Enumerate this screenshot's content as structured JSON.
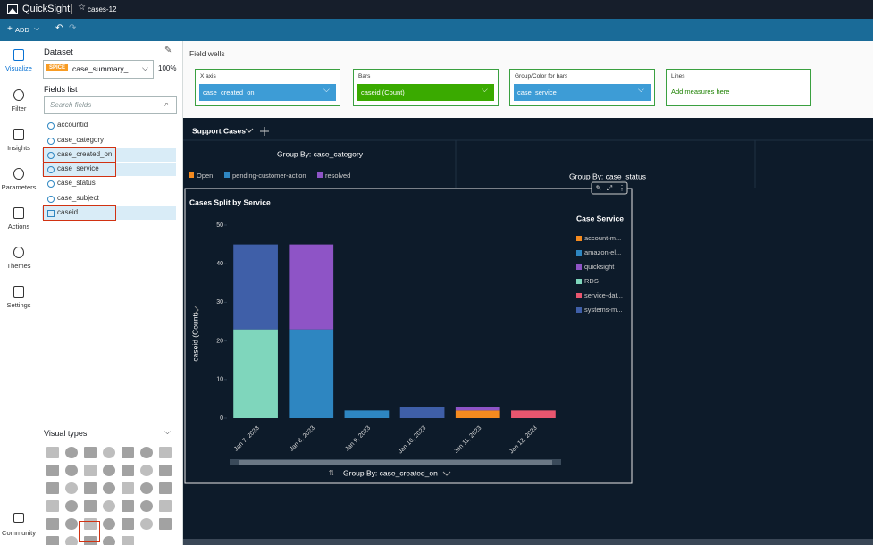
{
  "header": {
    "app": "QuickSight",
    "analysis": "cases-12",
    "add": "ADD"
  },
  "sidebar": {
    "items": [
      "Visualize",
      "Filter",
      "Insights",
      "Parameters",
      "Actions",
      "Themes",
      "Settings"
    ],
    "community": "Community"
  },
  "dataset": {
    "title": "Dataset",
    "badge": "SPICE",
    "name": "case_summary_...",
    "percent": "100%"
  },
  "fields": {
    "title": "Fields list",
    "search": "Search fields",
    "items": [
      "accountid",
      "case_category",
      "case_created_on",
      "case_service",
      "case_status",
      "case_subject",
      "caseid"
    ]
  },
  "visual_types": {
    "title": "Visual types"
  },
  "field_wells": {
    "title": "Field wells",
    "wells": [
      {
        "label": "X axis",
        "value": "case_created_on"
      },
      {
        "label": "Bars",
        "value": "caseid (Count)"
      },
      {
        "label": "Group/Color for bars",
        "value": "case_service"
      },
      {
        "label": "Lines",
        "value": "Add measures here"
      }
    ]
  },
  "sheet_tab": "Support Cases",
  "background": {
    "title1": "Group By: case_category",
    "title2": "Group By: case_status",
    "legend": [
      {
        "name": "Open",
        "color": "#f58b1f"
      },
      {
        "name": "pending-customer-action",
        "color": "#2e86c1"
      },
      {
        "name": "resolved",
        "color": "#8e54c6"
      }
    ]
  },
  "chart_data": {
    "type": "bar",
    "stacked": true,
    "title": "Cases Split by Service",
    "y_label": "caseid (Count)",
    "x_label": "Group By: case_created_on",
    "legend_title": "Case Service",
    "legend_position": "right",
    "categories": [
      "Jan 7, 2023",
      "Jan 8, 2023",
      "Jan 9, 2023",
      "Jan 10, 2023",
      "Jan 11, 2023",
      "Jan 12, 2023"
    ],
    "series": [
      {
        "name": "account-m...",
        "color": "#f58b1f",
        "values": [
          null,
          null,
          null,
          null,
          2,
          null
        ]
      },
      {
        "name": "amazon-el...",
        "color": "#2e86c1",
        "values": [
          null,
          23,
          2,
          null,
          null,
          null
        ]
      },
      {
        "name": "quicksight",
        "color": "#8e54c6",
        "values": [
          null,
          22,
          null,
          null,
          1,
          null
        ]
      },
      {
        "name": "RDS",
        "color": "#7fd6bc",
        "values": [
          23,
          null,
          null,
          null,
          null,
          null
        ]
      },
      {
        "name": "service-dat...",
        "color": "#e8566f",
        "values": [
          null,
          null,
          null,
          null,
          null,
          2
        ]
      },
      {
        "name": "systems-m...",
        "color": "#3f5fa8",
        "values": [
          22,
          null,
          null,
          3,
          null,
          null
        ]
      }
    ],
    "ylim": [
      0,
      50
    ],
    "yticks": [
      0,
      10,
      20,
      30,
      40,
      50
    ],
    "grid": false
  }
}
